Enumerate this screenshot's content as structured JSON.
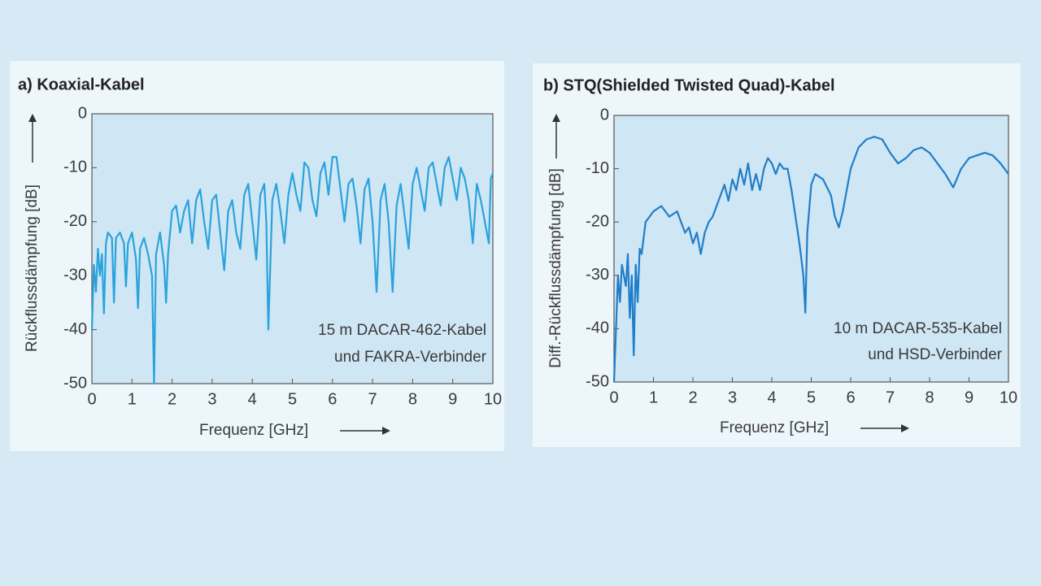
{
  "chart_data": [
    {
      "type": "line",
      "title": "a) Koaxial-Kabel",
      "ylabel": "Rückflussdämpfung [dB]",
      "xlabel": "Frequenz [GHz]",
      "annotation": [
        "15 m DACAR-462-Kabel",
        "und FAKRA-Verbinder"
      ],
      "color": "#2aa3dc",
      "xlim": [
        0,
        10
      ],
      "ylim": [
        -50,
        0
      ],
      "xticks": [
        0,
        1,
        2,
        3,
        4,
        5,
        6,
        7,
        8,
        9,
        10
      ],
      "yticks": [
        0,
        -10,
        -20,
        -30,
        -40,
        -50
      ],
      "grid": false,
      "x": [
        0,
        0.05,
        0.1,
        0.15,
        0.2,
        0.25,
        0.3,
        0.35,
        0.4,
        0.5,
        0.55,
        0.6,
        0.7,
        0.8,
        0.85,
        0.9,
        1.0,
        1.1,
        1.15,
        1.2,
        1.3,
        1.4,
        1.5,
        1.55,
        1.6,
        1.7,
        1.8,
        1.85,
        1.9,
        2.0,
        2.1,
        2.2,
        2.3,
        2.4,
        2.5,
        2.6,
        2.7,
        2.8,
        2.9,
        3.0,
        3.1,
        3.2,
        3.3,
        3.4,
        3.5,
        3.6,
        3.7,
        3.8,
        3.9,
        4.0,
        4.1,
        4.2,
        4.3,
        4.35,
        4.4,
        4.5,
        4.6,
        4.7,
        4.8,
        4.9,
        5.0,
        5.1,
        5.2,
        5.3,
        5.4,
        5.5,
        5.6,
        5.7,
        5.8,
        5.9,
        6.0,
        6.1,
        6.2,
        6.3,
        6.4,
        6.5,
        6.6,
        6.7,
        6.8,
        6.9,
        7.0,
        7.1,
        7.2,
        7.3,
        7.4,
        7.5,
        7.6,
        7.7,
        7.8,
        7.9,
        8.0,
        8.1,
        8.2,
        8.3,
        8.4,
        8.5,
        8.6,
        8.7,
        8.8,
        8.9,
        9.0,
        9.1,
        9.2,
        9.3,
        9.4,
        9.5,
        9.6,
        9.7,
        9.8,
        9.9,
        9.95,
        10.0
      ],
      "values": [
        -40,
        -28,
        -33,
        -25,
        -30,
        -26,
        -37,
        -24,
        -22,
        -23,
        -35,
        -23,
        -22,
        -24,
        -32,
        -24,
        -22,
        -27,
        -36,
        -25,
        -23,
        -26,
        -30,
        -50,
        -26,
        -22,
        -28,
        -35,
        -26,
        -18,
        -17,
        -22,
        -18,
        -16,
        -24,
        -16,
        -14,
        -20,
        -25,
        -16,
        -15,
        -22,
        -29,
        -18,
        -16,
        -22,
        -25,
        -15,
        -13,
        -20,
        -27,
        -15,
        -13,
        -20,
        -40,
        -16,
        -13,
        -18,
        -24,
        -15,
        -11,
        -15,
        -18,
        -9,
        -10,
        -16,
        -19,
        -11,
        -9,
        -15,
        -8,
        -8,
        -14,
        -20,
        -13,
        -12,
        -17,
        -24,
        -14,
        -12,
        -20,
        -33,
        -16,
        -13,
        -20,
        -33,
        -17,
        -13,
        -19,
        -25,
        -13,
        -10,
        -14,
        -18,
        -10,
        -9,
        -13,
        -17,
        -10,
        -8,
        -12,
        -16,
        -10,
        -12,
        -16,
        -24,
        -13,
        -16,
        -20,
        -24,
        -12,
        -11
      ]
    },
    {
      "type": "line",
      "title": "b) STQ(Shielded Twisted Quad)-Kabel",
      "ylabel": "Diff.-Rückflussdämpfung [dB]",
      "xlabel": "Frequenz [GHz]",
      "annotation": [
        "10 m DACAR-535-Kabel",
        "und HSD-Verbinder"
      ],
      "color": "#1f7ec9",
      "xlim": [
        0,
        10
      ],
      "ylim": [
        -50,
        0
      ],
      "xticks": [
        0,
        1,
        2,
        3,
        4,
        5,
        6,
        7,
        8,
        9,
        10
      ],
      "yticks": [
        0,
        -10,
        -20,
        -30,
        -40,
        -50
      ],
      "grid": false,
      "x": [
        0,
        0.05,
        0.1,
        0.15,
        0.2,
        0.3,
        0.35,
        0.4,
        0.45,
        0.5,
        0.55,
        0.6,
        0.65,
        0.7,
        0.8,
        0.9,
        1.0,
        1.2,
        1.4,
        1.6,
        1.7,
        1.8,
        1.9,
        2.0,
        2.1,
        2.2,
        2.3,
        2.4,
        2.5,
        2.6,
        2.7,
        2.8,
        2.9,
        3.0,
        3.1,
        3.2,
        3.3,
        3.4,
        3.5,
        3.6,
        3.7,
        3.8,
        3.9,
        4.0,
        4.1,
        4.2,
        4.3,
        4.4,
        4.5,
        4.6,
        4.7,
        4.8,
        4.85,
        4.9,
        5.0,
        5.1,
        5.3,
        5.5,
        5.6,
        5.7,
        5.8,
        6.0,
        6.2,
        6.4,
        6.6,
        6.8,
        7.0,
        7.2,
        7.4,
        7.6,
        7.8,
        8.0,
        8.2,
        8.4,
        8.6,
        8.8,
        9.0,
        9.2,
        9.4,
        9.6,
        9.8,
        10
      ],
      "values": [
        -50,
        -40,
        -30,
        -35,
        -28,
        -32,
        -26,
        -38,
        -30,
        -45,
        -28,
        -35,
        -25,
        -26,
        -20,
        -19,
        -18,
        -17,
        -19,
        -18,
        -20,
        -22,
        -21,
        -24,
        -22,
        -26,
        -22,
        -20,
        -19,
        -17,
        -15,
        -13,
        -16,
        -12,
        -14,
        -10,
        -13,
        -9,
        -14,
        -11,
        -14,
        -10,
        -8,
        -9,
        -11,
        -9,
        -10,
        -10,
        -14,
        -19,
        -24,
        -30,
        -37,
        -22,
        -13,
        -11,
        -12,
        -15,
        -19,
        -21,
        -18,
        -10,
        -6,
        -4.5,
        -4,
        -4.5,
        -7,
        -9,
        -8,
        -6.5,
        -6,
        -7,
        -9,
        -11,
        -13.5,
        -10,
        -8,
        -7.5,
        -7,
        -7.5,
        -9,
        -11
      ]
    }
  ]
}
